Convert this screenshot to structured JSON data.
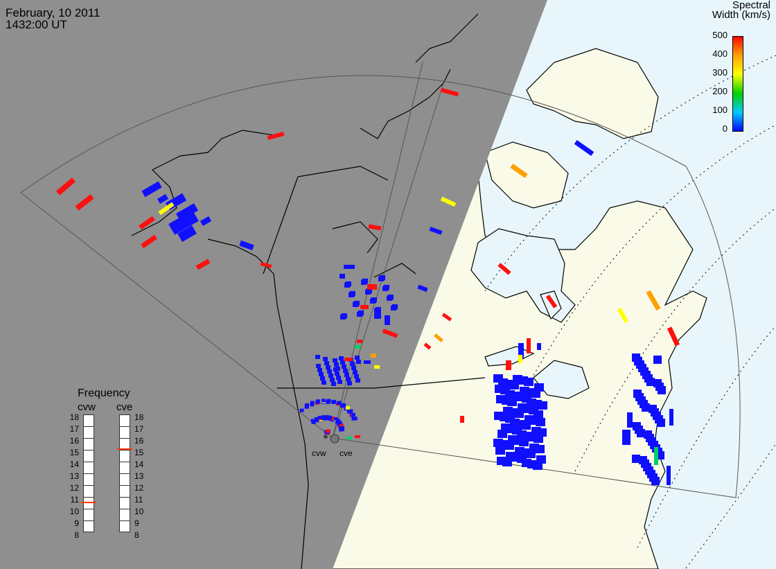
{
  "header": {
    "date": "February, 10 2011",
    "time": "1432:00 UT"
  },
  "colorbar": {
    "title_line1": "Spectral",
    "title_line2": "Width (km/s)",
    "ticks": [
      "500",
      "400",
      "300",
      "200",
      "100",
      "0"
    ],
    "min": 0,
    "max": 500,
    "colors": [
      "#0000ff",
      "#00c8ff",
      "#00e070",
      "#00d000",
      "#ffff00",
      "#ffa000",
      "#ff0000"
    ]
  },
  "radars": {
    "west": "cvw",
    "east": "cve"
  },
  "frequency_panel": {
    "title": "Frequency",
    "columns": [
      "cvw",
      "cve"
    ],
    "scale": [
      "18",
      "17",
      "16",
      "15",
      "14",
      "13",
      "12",
      "11",
      "10",
      "9",
      "8"
    ],
    "cvw_mhz": 10.6,
    "cve_mhz": 15.1,
    "marker_color": "#ff3300"
  },
  "colors": {
    "night_shade": "#8f8f8f",
    "ocean": "#e8f6fc",
    "land": "#fafae8",
    "echo_low": "#0000ff",
    "echo_high": "#ff0000"
  }
}
